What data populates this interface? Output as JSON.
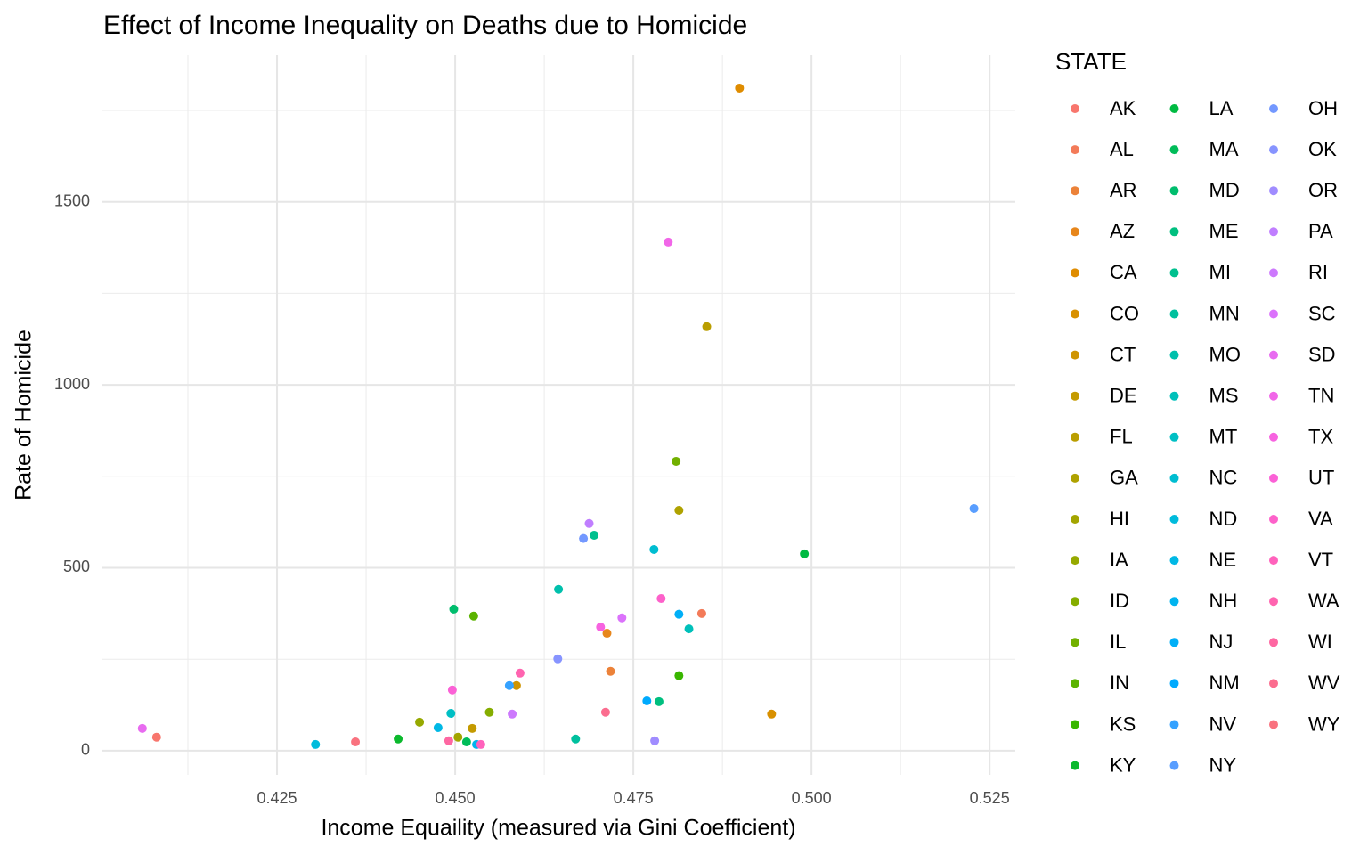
{
  "chart_data": {
    "type": "scatter",
    "title": "Effect of Income Inequality on Deaths due to Homicide",
    "x_label": "Income Equaility (measured via Gini Coefficient)",
    "y_label": "Rate of Homicide",
    "legend_title": "STATE",
    "legend_position": "right",
    "grid": true,
    "xlim": [
      0.4005,
      0.5286
    ],
    "ylim": [
      -66,
      1901
    ],
    "xticks": [
      0.425,
      {
        "value": 0.45,
        "label": "0.450"
      },
      0.475,
      {
        "value": 0.5,
        "label": "0.500"
      },
      0.525
    ],
    "yticks": [
      0,
      500,
      1000,
      1500
    ],
    "x_minor_ticks": [
      0.4125,
      0.4375,
      0.4625,
      0.4875,
      0.5125
    ],
    "y_minor_ticks": [
      250,
      750,
      1250,
      1750
    ],
    "series": [
      {
        "name": "AK",
        "color": "#F8766D",
        "x": [
          0.4081
        ],
        "values": [
          37
        ]
      },
      {
        "name": "AL",
        "color": "#F37B59",
        "x": [
          0.4846
        ],
        "values": [
          375
        ]
      },
      {
        "name": "AR",
        "color": "#EC8239",
        "x": [
          0.4718
        ],
        "values": [
          217
        ]
      },
      {
        "name": "AZ",
        "color": "#E7861B",
        "x": [
          0.4713
        ],
        "values": [
          321
        ]
      },
      {
        "name": "CA",
        "color": "#DF8C00",
        "x": [
          0.4899
        ],
        "values": [
          1811
        ]
      },
      {
        "name": "CO",
        "color": "#D89000",
        "x": [
          0.4944
        ],
        "values": [
          100
        ]
      },
      {
        "name": "CT",
        "color": "#CF9400",
        "x": [
          0.4586
        ],
        "values": [
          178
        ]
      },
      {
        "name": "DE",
        "color": "#C49A00",
        "x": [
          0.4524
        ],
        "values": [
          61
        ]
      },
      {
        "name": "FL",
        "color": "#BA9E00",
        "x": [
          0.4853
        ],
        "values": [
          1159
        ]
      },
      {
        "name": "GA",
        "color": "#AFA200",
        "x": [
          0.4814
        ],
        "values": [
          657
        ]
      },
      {
        "name": "HI",
        "color": "#A3A500",
        "x": [
          0.4504
        ],
        "values": [
          37
        ]
      },
      {
        "name": "IA",
        "color": "#96A900",
        "x": [
          0.445
        ],
        "values": [
          78
        ]
      },
      {
        "name": "ID",
        "color": "#85AD00",
        "x": [
          0.4548
        ],
        "values": [
          105
        ]
      },
      {
        "name": "IL",
        "color": "#72B000",
        "x": [
          0.481
        ],
        "values": [
          791
        ]
      },
      {
        "name": "IN",
        "color": "#5BB300",
        "x": [
          0.4526
        ],
        "values": [
          368
        ]
      },
      {
        "name": "KS",
        "color": "#39B600",
        "x": [
          0.4814
        ],
        "values": [
          205
        ]
      },
      {
        "name": "KY",
        "color": "#0BB92D",
        "x": [
          0.442
        ],
        "values": [
          32
        ]
      },
      {
        "name": "LA",
        "color": "#00BA42",
        "x": [
          0.499
        ],
        "values": [
          538
        ]
      },
      {
        "name": "MA",
        "color": "#00BC59",
        "x": [
          0.4516
        ],
        "values": [
          24
        ]
      },
      {
        "name": "MD",
        "color": "#00BD6D",
        "x": [
          0.4498
        ],
        "values": [
          387
        ]
      },
      {
        "name": "ME",
        "color": "#00BF7F",
        "x": [
          0.4786
        ],
        "values": [
          134
        ]
      },
      {
        "name": "MI",
        "color": "#00C08E",
        "x": [
          0.4695
        ],
        "values": [
          589
        ]
      },
      {
        "name": "MN",
        "color": "#00C09E",
        "x": [
          0.4669
        ],
        "values": [
          32
        ]
      },
      {
        "name": "MO",
        "color": "#00C0AC",
        "x": [
          0.4645
        ],
        "values": [
          441
        ]
      },
      {
        "name": "MS",
        "color": "#00C0BA",
        "x": [
          0.4828
        ],
        "values": [
          333
        ]
      },
      {
        "name": "MT",
        "color": "#00BFC4",
        "x": [
          0.4494
        ],
        "values": [
          102
        ]
      },
      {
        "name": "NC",
        "color": "#00BDD1",
        "x": [
          0.4779
        ],
        "values": [
          550
        ]
      },
      {
        "name": "ND",
        "color": "#00BBDC",
        "x": [
          0.4304
        ],
        "values": [
          17
        ]
      },
      {
        "name": "NE",
        "color": "#00B8E5",
        "x": [
          0.4476
        ],
        "values": [
          63
        ]
      },
      {
        "name": "NH",
        "color": "#00B4EF",
        "x": [
          0.453
        ],
        "values": [
          17
        ]
      },
      {
        "name": "NJ",
        "color": "#00AFF7",
        "x": [
          0.4814
        ],
        "values": [
          373
        ]
      },
      {
        "name": "NM",
        "color": "#00AAFE",
        "x": [
          0.4769
        ],
        "values": [
          136
        ]
      },
      {
        "name": "NV",
        "color": "#35A2FF",
        "x": [
          0.4576
        ],
        "values": [
          178
        ]
      },
      {
        "name": "NY",
        "color": "#599EFF",
        "x": [
          0.5228
        ],
        "values": [
          662
        ]
      },
      {
        "name": "OH",
        "color": "#7398FF",
        "x": [
          0.468
        ],
        "values": [
          580
        ]
      },
      {
        "name": "OK",
        "color": "#8794FF",
        "x": [
          0.4644
        ],
        "values": [
          251
        ]
      },
      {
        "name": "OR",
        "color": "#A08CFF",
        "x": [
          0.478
        ],
        "values": [
          27
        ]
      },
      {
        "name": "PA",
        "color": "#C07EFF",
        "x": [
          0.4688
        ],
        "values": [
          621
        ]
      },
      {
        "name": "RI",
        "color": "#CD79FD",
        "x": [
          0.458
        ],
        "values": [
          100
        ]
      },
      {
        "name": "SC",
        "color": "#DB72FB",
        "x": [
          0.4734
        ],
        "values": [
          363
        ]
      },
      {
        "name": "SD",
        "color": "#E86BF0",
        "x": [
          0.4061
        ],
        "values": [
          61
        ]
      },
      {
        "name": "TN",
        "color": "#F166E8",
        "x": [
          0.4799
        ],
        "values": [
          1390
        ]
      },
      {
        "name": "TX",
        "color": "#F763E0",
        "x": [
          0.4704
        ],
        "values": [
          338
        ]
      },
      {
        "name": "UT",
        "color": "#FB61D6",
        "x": [
          0.4496
        ],
        "values": [
          166
        ]
      },
      {
        "name": "VA",
        "color": "#FD61CA",
        "x": [
          0.4789
        ],
        "values": [
          416
        ]
      },
      {
        "name": "VT",
        "color": "#FF62BC",
        "x": [
          0.4536
        ],
        "values": [
          17
        ]
      },
      {
        "name": "WA",
        "color": "#FF64B0",
        "x": [
          0.4591
        ],
        "values": [
          212
        ]
      },
      {
        "name": "WI",
        "color": "#FE67A2",
        "x": [
          0.4491
        ],
        "values": [
          27
        ]
      },
      {
        "name": "WV",
        "color": "#FB6D8F",
        "x": [
          0.4711
        ],
        "values": [
          105
        ]
      },
      {
        "name": "WY",
        "color": "#F9727F",
        "x": [
          0.436
        ],
        "values": [
          24
        ]
      }
    ]
  }
}
